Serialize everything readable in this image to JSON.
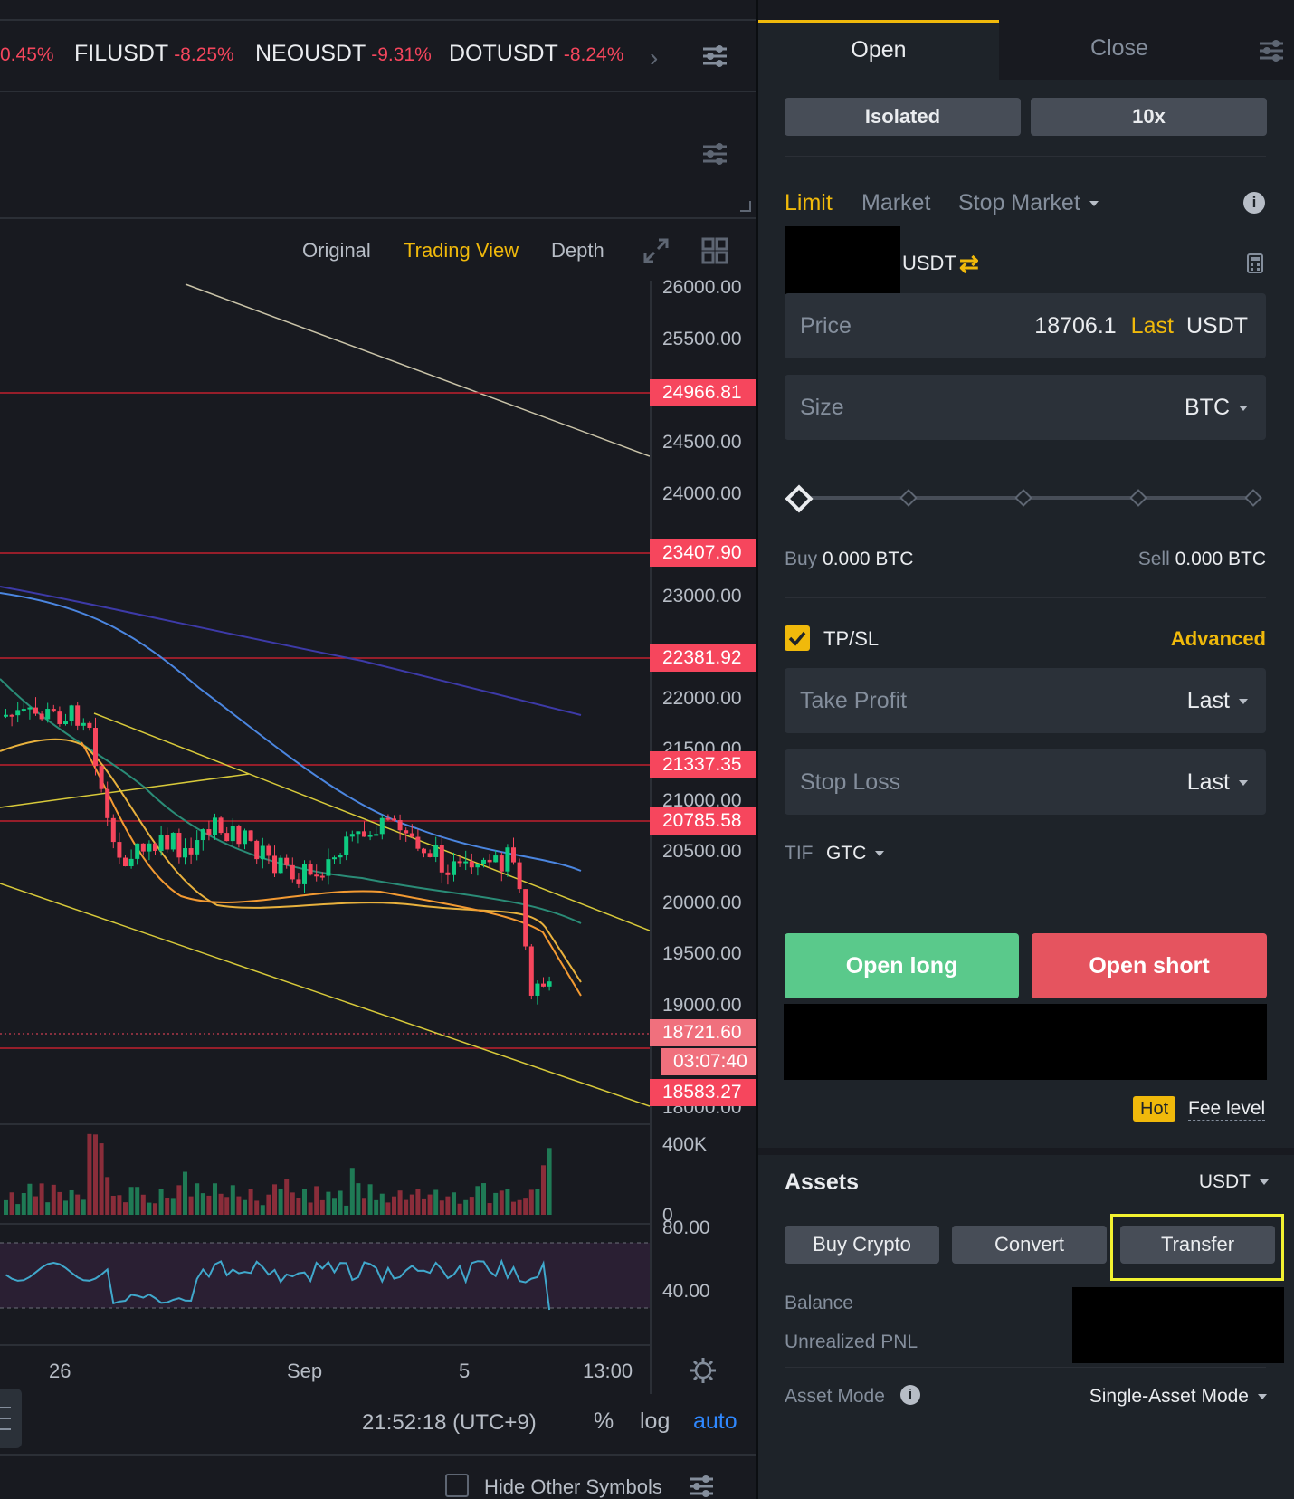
{
  "tickers": [
    {
      "symbol": "",
      "change": "0.45%"
    },
    {
      "symbol": "FILUSDT",
      "change": "-8.25%"
    },
    {
      "symbol": "NEOUSDT",
      "change": "-9.31%"
    },
    {
      "symbol": "DOTUSDT",
      "change": "-8.24%"
    }
  ],
  "chart_tabs": {
    "original": "Original",
    "trading_view": "Trading View",
    "depth": "Depth"
  },
  "price_axis": [
    "26000.00",
    "25500.00",
    "24500.00",
    "24000.00",
    "23000.00",
    "22000.00",
    "21500.00",
    "21000.00",
    "20500.00",
    "20000.00",
    "19500.00",
    "19000.00",
    "18000.00"
  ],
  "level_tags": [
    "24966.81",
    "23407.90",
    "22381.92",
    "21337.35",
    "20785.58",
    "18583.27"
  ],
  "current_price_tag": "18721.60",
  "countdown_tag": "03:07:40",
  "volume_axis": {
    "top": "400K",
    "bottom": "0"
  },
  "rsi_axis": {
    "top": "80.00",
    "mid": "40.00"
  },
  "time_axis": [
    "26",
    "Sep",
    "5",
    "13:00"
  ],
  "bottom_bar": {
    "clock": "21:52:18 (UTC+9)",
    "percent": "%",
    "log": "log",
    "auto": "auto"
  },
  "hide_symbols": "Hide Other Symbols",
  "order_panel": {
    "tab_open": "Open",
    "tab_close": "Close",
    "margin_mode": "Isolated",
    "leverage": "10x",
    "order_types": {
      "limit": "Limit",
      "market": "Market",
      "stop_market": "Stop Market"
    },
    "currency": "USDT",
    "price": {
      "label": "Price",
      "value": "18706.1",
      "last": "Last",
      "unit": "USDT"
    },
    "size": {
      "label": "Size",
      "unit": "BTC"
    },
    "slider_value": 0,
    "buy": {
      "label": "Buy",
      "value": "0.000 BTC"
    },
    "sell": {
      "label": "Sell",
      "value": "0.000 BTC"
    },
    "tpsl": {
      "label": "TP/SL",
      "checked": true,
      "advanced": "Advanced"
    },
    "take_profit": {
      "label": "Take Profit",
      "trigger": "Last"
    },
    "stop_loss": {
      "label": "Stop Loss",
      "trigger": "Last"
    },
    "tif": {
      "label": "TIF",
      "value": "GTC"
    },
    "open_long": "Open long",
    "open_short": "Open short",
    "hot": "Hot",
    "fee_level": "Fee level"
  },
  "assets": {
    "title": "Assets",
    "currency": "USDT",
    "buy_crypto": "Buy Crypto",
    "convert": "Convert",
    "transfer": "Transfer",
    "balance": "Balance",
    "unrealized_pnl": "Unrealized PNL",
    "asset_mode_label": "Asset Mode",
    "asset_mode_value": "Single-Asset Mode"
  },
  "colors": {
    "accent": "#f0b90b",
    "up": "#0ecb81",
    "down": "#f6465d",
    "long_btn": "#5ac98b",
    "short_btn": "#e5545f",
    "highlight": "#f2f230"
  }
}
